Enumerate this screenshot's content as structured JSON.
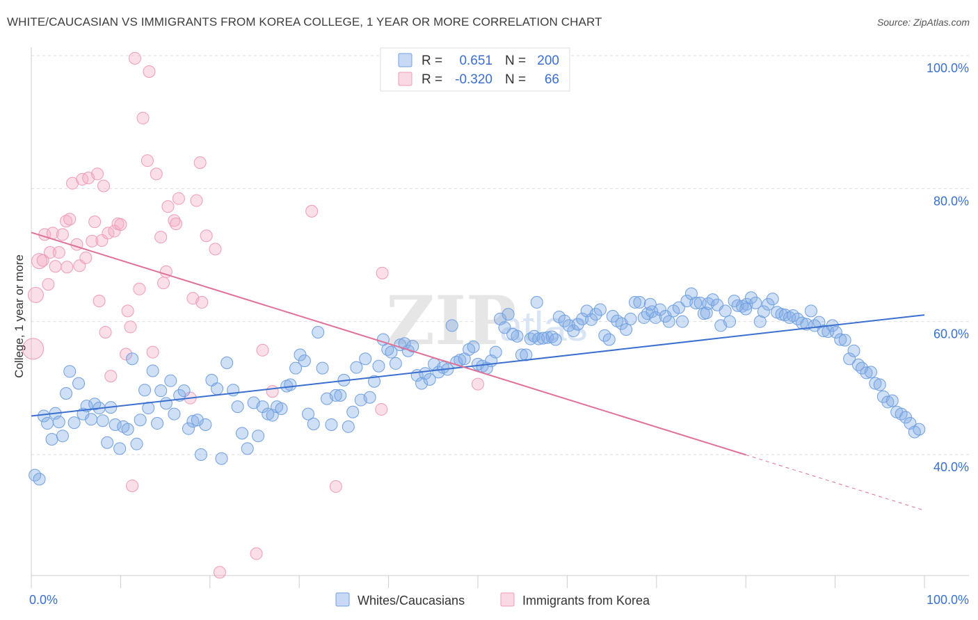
{
  "title": "WHITE/CAUCASIAN VS IMMIGRANTS FROM KOREA COLLEGE, 1 YEAR OR MORE CORRELATION CHART",
  "source": "Source: ZipAtlas.com",
  "watermark": {
    "zip": "ZIP",
    "atlas": "atlas"
  },
  "colors": {
    "blue": "#3a6fd0",
    "blue_fill": "rgba(130,170,230,0.38)",
    "blue_stroke": "#6f9fe0",
    "pink": "#e07096",
    "pink_fill": "rgba(245,170,195,0.38)",
    "pink_stroke": "#ef9ab8",
    "grid": "#dddddd"
  },
  "legend": {
    "rows": [
      {
        "r_label": "R =",
        "r_value": "0.651",
        "n_label": "N =",
        "n_value": "200",
        "series": "blue"
      },
      {
        "r_label": "R =",
        "r_value": "-0.320",
        "n_label": "N =",
        "n_value": "66",
        "series": "pink"
      }
    ]
  },
  "chart_data": {
    "type": "scatter",
    "xlabel": "",
    "ylabel": "College, 1 year or more",
    "xlim": [
      0,
      100
    ],
    "ylim": [
      20,
      102
    ],
    "x_tick_labels": [
      "0.0%",
      "100.0%"
    ],
    "y_ticks": [
      40,
      60,
      80,
      100
    ],
    "y_tick_labels": [
      "40.0%",
      "60.0%",
      "80.0%",
      "100.0%"
    ],
    "grid": true,
    "legend_position": "top-center",
    "series": [
      {
        "name": "Whites/Caucasians",
        "color": "blue",
        "trend": {
          "x0": 0,
          "y0": 45.8,
          "x1": 100,
          "y1": 61.0,
          "dashed_from": null
        },
        "points": [
          [
            0.4,
            36.9
          ],
          [
            0.9,
            36.3
          ],
          [
            1.4,
            45.8
          ],
          [
            1.8,
            44.7
          ],
          [
            2.3,
            42.3
          ],
          [
            2.7,
            46.2
          ],
          [
            3.1,
            44.9
          ],
          [
            3.5,
            42.8
          ],
          [
            3.9,
            49.2
          ],
          [
            4.3,
            52.5
          ],
          [
            4.8,
            44.8
          ],
          [
            5.3,
            50.7
          ],
          [
            5.8,
            46.1
          ],
          [
            6.2,
            47.3
          ],
          [
            6.7,
            45.3
          ],
          [
            7.1,
            47.6
          ],
          [
            7.6,
            47.0
          ],
          [
            8.0,
            45.1
          ],
          [
            8.5,
            41.8
          ],
          [
            8.9,
            47.1
          ],
          [
            9.4,
            44.5
          ],
          [
            9.9,
            40.9
          ],
          [
            10.3,
            44.2
          ],
          [
            10.8,
            43.8
          ],
          [
            11.3,
            54.4
          ],
          [
            11.8,
            41.6
          ],
          [
            12.2,
            45.2
          ],
          [
            12.7,
            49.7
          ],
          [
            13.1,
            47.0
          ],
          [
            13.6,
            52.6
          ],
          [
            14.1,
            44.7
          ],
          [
            14.5,
            49.6
          ],
          [
            15.1,
            47.7
          ],
          [
            15.6,
            51.1
          ],
          [
            16.0,
            46.1
          ],
          [
            16.6,
            48.9
          ],
          [
            17.1,
            49.6
          ],
          [
            17.6,
            43.9
          ],
          [
            18.1,
            45.0
          ],
          [
            18.6,
            45.2
          ],
          [
            19.0,
            40.0
          ],
          [
            19.5,
            44.5
          ],
          [
            20.2,
            51.2
          ],
          [
            20.8,
            49.9
          ],
          [
            21.3,
            39.4
          ],
          [
            21.9,
            53.8
          ],
          [
            22.6,
            49.7
          ],
          [
            23.1,
            47.2
          ],
          [
            23.6,
            43.2
          ],
          [
            24.2,
            40.9
          ],
          [
            24.9,
            47.8
          ],
          [
            25.4,
            42.8
          ],
          [
            25.9,
            47.2
          ],
          [
            26.5,
            46.1
          ],
          [
            27.0,
            45.9
          ],
          [
            27.5,
            47.2
          ],
          [
            28.0,
            46.9
          ],
          [
            28.6,
            50.3
          ],
          [
            29.0,
            50.5
          ],
          [
            29.6,
            53.0
          ],
          [
            30.1,
            55.0
          ],
          [
            30.6,
            54.1
          ],
          [
            31.0,
            46.1
          ],
          [
            31.6,
            44.6
          ],
          [
            32.1,
            58.4
          ],
          [
            32.6,
            53.0
          ],
          [
            33.1,
            48.4
          ],
          [
            33.6,
            44.5
          ],
          [
            34.1,
            48.9
          ],
          [
            34.6,
            48.9
          ],
          [
            35.0,
            51.2
          ],
          [
            35.5,
            44.2
          ],
          [
            36.0,
            46.4
          ],
          [
            36.4,
            53.1
          ],
          [
            36.9,
            48.2
          ],
          [
            37.4,
            54.4
          ],
          [
            37.9,
            48.6
          ],
          [
            38.4,
            51.0
          ],
          [
            38.9,
            53.3
          ],
          [
            39.4,
            57.3
          ],
          [
            39.9,
            55.8
          ],
          [
            40.3,
            55.4
          ],
          [
            40.8,
            53.7
          ],
          [
            41.3,
            56.5
          ],
          [
            41.8,
            56.7
          ],
          [
            42.2,
            55.6
          ],
          [
            42.7,
            56.3
          ],
          [
            43.2,
            51.9
          ],
          [
            43.7,
            50.7
          ],
          [
            44.1,
            52.2
          ],
          [
            44.6,
            51.3
          ],
          [
            45.1,
            53.6
          ],
          [
            45.6,
            52.4
          ],
          [
            46.1,
            53.1
          ],
          [
            46.6,
            52.8
          ],
          [
            47.1,
            59.4
          ],
          [
            47.6,
            53.9
          ],
          [
            48.0,
            54.2
          ],
          [
            48.5,
            54.4
          ],
          [
            49.0,
            55.8
          ],
          [
            49.5,
            56.2
          ],
          [
            50.0,
            53.6
          ],
          [
            50.5,
            53.3
          ],
          [
            51.0,
            53.0
          ],
          [
            51.5,
            54.1
          ],
          [
            52.0,
            55.4
          ],
          [
            52.5,
            60.4
          ],
          [
            53.0,
            59.1
          ],
          [
            53.4,
            61.1
          ],
          [
            53.9,
            58.1
          ],
          [
            54.4,
            57.8
          ],
          [
            54.9,
            55.0
          ],
          [
            55.4,
            55.0
          ],
          [
            55.9,
            57.4
          ],
          [
            56.3,
            57.8
          ],
          [
            56.8,
            57.4
          ],
          [
            57.3,
            57.5
          ],
          [
            57.8,
            57.6
          ],
          [
            58.3,
            57.7
          ],
          [
            58.7,
            57.3
          ],
          [
            59.1,
            60.7
          ],
          [
            59.7,
            60.1
          ],
          [
            60.2,
            59.4
          ],
          [
            60.7,
            58.6
          ],
          [
            61.2,
            59.6
          ],
          [
            61.7,
            60.4
          ],
          [
            62.2,
            61.6
          ],
          [
            62.7,
            60.3
          ],
          [
            63.2,
            61.1
          ],
          [
            63.7,
            61.8
          ],
          [
            64.2,
            57.9
          ],
          [
            64.7,
            57.3
          ],
          [
            65.1,
            60.8
          ],
          [
            65.6,
            60.1
          ],
          [
            66.1,
            59.7
          ],
          [
            66.6,
            58.8
          ],
          [
            67.1,
            60.4
          ],
          [
            67.6,
            62.9
          ],
          [
            68.1,
            62.9
          ],
          [
            68.6,
            60.6
          ],
          [
            69.0,
            61.2
          ],
          [
            69.5,
            61.5
          ],
          [
            69.9,
            60.6
          ],
          [
            70.4,
            61.8
          ],
          [
            71.0,
            60.8
          ],
          [
            71.4,
            60.0
          ],
          [
            71.9,
            61.6
          ],
          [
            72.5,
            62.1
          ],
          [
            72.9,
            60.0
          ],
          [
            73.4,
            63.1
          ],
          [
            73.9,
            64.2
          ],
          [
            74.4,
            62.8
          ],
          [
            74.9,
            62.8
          ],
          [
            75.3,
            61.2
          ],
          [
            75.8,
            62.7
          ],
          [
            76.3,
            63.3
          ],
          [
            76.8,
            62.5
          ],
          [
            77.2,
            59.4
          ],
          [
            77.7,
            61.6
          ],
          [
            78.2,
            60.0
          ],
          [
            78.7,
            63.1
          ],
          [
            79.1,
            62.4
          ],
          [
            79.6,
            62.3
          ],
          [
            80.1,
            62.6
          ],
          [
            80.6,
            63.6
          ],
          [
            81.1,
            62.8
          ],
          [
            81.6,
            60.0
          ],
          [
            82.0,
            61.5
          ],
          [
            82.5,
            62.6
          ],
          [
            83.0,
            63.4
          ],
          [
            83.5,
            61.4
          ],
          [
            84.0,
            61.1
          ],
          [
            84.4,
            61.0
          ],
          [
            84.9,
            60.6
          ],
          [
            85.3,
            60.9
          ],
          [
            85.8,
            60.4
          ],
          [
            86.3,
            59.8
          ],
          [
            86.8,
            59.6
          ],
          [
            87.3,
            61.6
          ],
          [
            87.7,
            59.4
          ],
          [
            88.2,
            59.9
          ],
          [
            88.7,
            58.6
          ],
          [
            89.2,
            58.5
          ],
          [
            89.7,
            59.4
          ],
          [
            90.1,
            58.4
          ],
          [
            90.6,
            57.3
          ],
          [
            91.1,
            57.2
          ],
          [
            91.6,
            54.4
          ],
          [
            92.1,
            55.6
          ],
          [
            92.6,
            53.5
          ],
          [
            93.0,
            53.0
          ],
          [
            93.5,
            52.3
          ],
          [
            94.0,
            52.4
          ],
          [
            94.5,
            50.7
          ],
          [
            95.0,
            50.5
          ],
          [
            95.4,
            48.7
          ],
          [
            95.9,
            47.9
          ],
          [
            96.4,
            48.1
          ],
          [
            96.9,
            46.4
          ],
          [
            97.4,
            46.1
          ],
          [
            97.9,
            45.6
          ],
          [
            98.4,
            44.7
          ],
          [
            98.9,
            43.4
          ],
          [
            99.4,
            43.8
          ],
          [
            80.0,
            61.9
          ],
          [
            75.6,
            61.3
          ],
          [
            69.3,
            62.6
          ],
          [
            56.6,
            62.9
          ]
        ]
      },
      {
        "name": "Immigrants from Korea",
        "color": "pink",
        "trend": {
          "x0": 0,
          "y0": 73.4,
          "x1": 100,
          "y1": 31.6,
          "dashed_from": 80
        },
        "points": [
          [
            0.2,
            55.9
          ],
          [
            0.5,
            64.0
          ],
          [
            0.9,
            69.1
          ],
          [
            1.3,
            69.2
          ],
          [
            1.5,
            73.1
          ],
          [
            1.9,
            65.6
          ],
          [
            2.1,
            70.4
          ],
          [
            2.4,
            73.3
          ],
          [
            2.7,
            68.3
          ],
          [
            3.1,
            70.4
          ],
          [
            3.5,
            73.1
          ],
          [
            3.9,
            75.1
          ],
          [
            4.0,
            68.2
          ],
          [
            4.3,
            75.4
          ],
          [
            4.6,
            80.8
          ],
          [
            5.1,
            71.6
          ],
          [
            5.4,
            68.4
          ],
          [
            5.7,
            81.4
          ],
          [
            6.1,
            69.6
          ],
          [
            6.4,
            81.6
          ],
          [
            6.8,
            72.1
          ],
          [
            7.1,
            75.0
          ],
          [
            7.4,
            82.2
          ],
          [
            7.6,
            63.1
          ],
          [
            7.9,
            72.2
          ],
          [
            8.1,
            80.4
          ],
          [
            8.3,
            58.4
          ],
          [
            8.6,
            73.3
          ],
          [
            8.9,
            51.8
          ],
          [
            9.3,
            73.6
          ],
          [
            9.7,
            74.7
          ],
          [
            10.0,
            74.6
          ],
          [
            10.6,
            55.1
          ],
          [
            10.8,
            61.6
          ],
          [
            11.1,
            59.2
          ],
          [
            11.3,
            35.3
          ],
          [
            11.6,
            99.6
          ],
          [
            12.1,
            64.9
          ],
          [
            12.5,
            90.6
          ],
          [
            13.0,
            84.2
          ],
          [
            13.2,
            97.6
          ],
          [
            13.6,
            55.4
          ],
          [
            14.0,
            82.2
          ],
          [
            14.5,
            72.7
          ],
          [
            14.8,
            65.8
          ],
          [
            15.1,
            67.5
          ],
          [
            15.3,
            77.3
          ],
          [
            16.0,
            75.2
          ],
          [
            16.2,
            74.7
          ],
          [
            16.5,
            78.5
          ],
          [
            17.8,
            48.5
          ],
          [
            18.1,
            63.5
          ],
          [
            18.5,
            78.2
          ],
          [
            18.9,
            83.9
          ],
          [
            19.1,
            62.9
          ],
          [
            19.6,
            72.9
          ],
          [
            20.6,
            70.9
          ],
          [
            21.1,
            22.3
          ],
          [
            25.2,
            25.1
          ],
          [
            25.9,
            55.7
          ],
          [
            27.0,
            49.5
          ],
          [
            31.4,
            76.6
          ],
          [
            34.1,
            35.2
          ],
          [
            39.2,
            46.8
          ],
          [
            39.3,
            67.3
          ],
          [
            50.0,
            50.6
          ]
        ]
      }
    ]
  },
  "bottom_legend": {
    "items": [
      {
        "label": "Whites/Caucasians",
        "series": "blue"
      },
      {
        "label": "Immigrants from Korea",
        "series": "pink"
      }
    ]
  }
}
